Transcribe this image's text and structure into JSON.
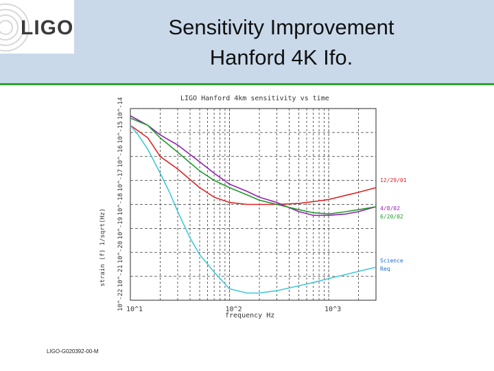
{
  "header": {
    "logo_text": "LIGO",
    "title_line1": "Sensitivity Improvement",
    "title_line2": "Hanford 4K Ifo."
  },
  "footer": {
    "doc_id": "LIGO-G020392-00-M"
  },
  "colors": {
    "header_bg": "#c9d9ea",
    "rule": "#2aa52a",
    "red": "#e02020",
    "purple": "#9020b0",
    "green": "#1e9a28",
    "cyan": "#40c8d8"
  },
  "chart_data": {
    "type": "line",
    "title": "LIGO Hanford 4km sensitivity vs time",
    "xlabel": "frequency Hz",
    "ylabel": "strain (f) 1/sqrt(Hz)",
    "x_scale": "log",
    "y_scale": "log",
    "xlim": [
      10,
      3000
    ],
    "ylim": [
      1e-22,
      1e-14
    ],
    "xticks": [
      {
        "label": "10^1"
      },
      {
        "label": "10^2"
      },
      {
        "label": "10^3"
      }
    ],
    "yticks": [
      {
        "label": "10^-14"
      },
      {
        "label": "10^-15"
      },
      {
        "label": "10^-16"
      },
      {
        "label": "10^-17"
      },
      {
        "label": "10^-18"
      },
      {
        "label": "10^-19"
      },
      {
        "label": "10^-20"
      },
      {
        "label": "10^-21"
      },
      {
        "label": "10^-22"
      }
    ],
    "grid": true,
    "series": [
      {
        "name": "12/29/01",
        "color": "#e02020",
        "x": [
          10,
          15,
          20,
          30,
          50,
          70,
          100,
          150,
          200,
          300,
          500,
          700,
          1000,
          1500,
          2000,
          3000
        ],
        "y": [
          2e-15,
          6e-16,
          1e-16,
          3e-17,
          5e-18,
          2e-18,
          1.2e-18,
          1e-18,
          1e-18,
          1e-18,
          1.1e-18,
          1.3e-18,
          1.6e-18,
          2.4e-18,
          3.2e-18,
          5e-18
        ]
      },
      {
        "name": "4/8/02",
        "color": "#9020b0",
        "x": [
          10,
          15,
          20,
          30,
          50,
          70,
          100,
          150,
          200,
          300,
          500,
          700,
          1000,
          1500,
          2000,
          3000
        ],
        "y": [
          5e-15,
          2e-15,
          8e-16,
          3e-16,
          6e-17,
          2e-17,
          7e-18,
          3.5e-18,
          2e-18,
          1.2e-18,
          5e-19,
          3.5e-19,
          3.5e-19,
          4e-19,
          5e-19,
          8e-19
        ]
      },
      {
        "name": "6/20/02",
        "color": "#1e9a28",
        "x": [
          10,
          15,
          20,
          30,
          50,
          70,
          100,
          150,
          200,
          300,
          500,
          700,
          1000,
          1500,
          2000,
          3000
        ],
        "y": [
          4e-15,
          2e-15,
          6e-16,
          1.5e-16,
          2.5e-17,
          1e-17,
          5e-18,
          2.5e-18,
          1.5e-18,
          1e-18,
          6e-19,
          4.5e-19,
          4e-19,
          5e-19,
          6e-19,
          8e-19
        ]
      },
      {
        "name": "Science Req",
        "color": "#40c8d8",
        "x": [
          10,
          12,
          15,
          20,
          25,
          30,
          40,
          50,
          70,
          100,
          150,
          200,
          300,
          500,
          700,
          1000,
          1500,
          2000,
          3000
        ],
        "y": [
          2e-15,
          8e-16,
          2e-16,
          2e-17,
          3e-18,
          5e-19,
          4e-20,
          8e-21,
          1.5e-21,
          3e-22,
          2e-22,
          2e-22,
          2.5e-22,
          4e-22,
          5.5e-22,
          8e-22,
          1.2e-21,
          1.6e-21,
          2.4e-21
        ]
      }
    ],
    "legend_labels": [
      {
        "text": "12/29/01",
        "color": "#e02020"
      },
      {
        "text": "4/8/02",
        "color": "#9020b0"
      },
      {
        "text": "6/20/02",
        "color": "#1e9a28"
      },
      {
        "text": "Science",
        "color": "#1a6bd0"
      },
      {
        "text": "Req",
        "color": "#1a6bd0"
      }
    ]
  }
}
